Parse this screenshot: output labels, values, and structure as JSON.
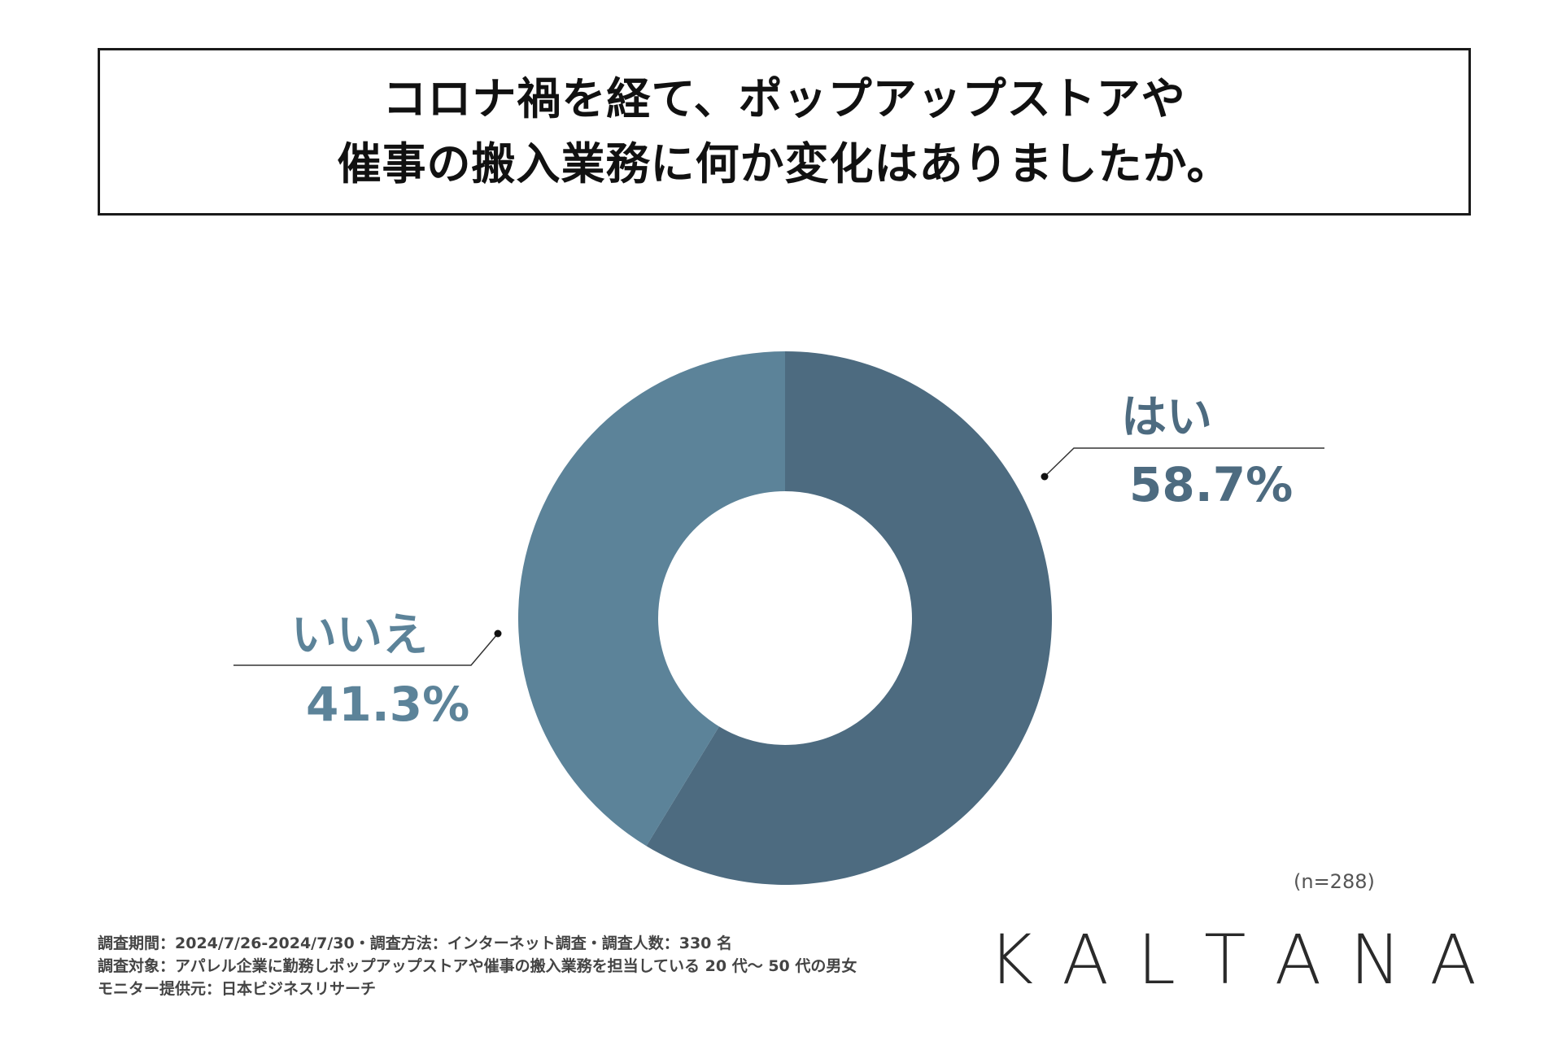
{
  "title": {
    "line1": "コロナ禍を経て、ポップアップストアや",
    "line2": "催事の搬入業務に何か変化はありましたか。"
  },
  "chart_data": {
    "type": "pie",
    "donut": true,
    "categories": [
      "はい",
      "いいえ"
    ],
    "values": [
      58.7,
      41.3
    ],
    "labels": [
      "58.7%",
      "41.3%"
    ],
    "colors": [
      "#4d6b80",
      "#5c8399"
    ],
    "sample_size": "(n=288)"
  },
  "footnotes": [
    "調査期間：2024/7/26-2024/7/30・調査方法：インターネット調査・調査人数：330 名",
    "調査対象：アパレル企業に勤務しポップアップストアや催事の搬入業務を担当している 20 代〜 50 代の男女",
    "モニター提供元：日本ビジネスリサーチ"
  ],
  "brand": {
    "letters": [
      "K",
      "A",
      "L",
      "T",
      "A",
      "N",
      "A"
    ]
  }
}
